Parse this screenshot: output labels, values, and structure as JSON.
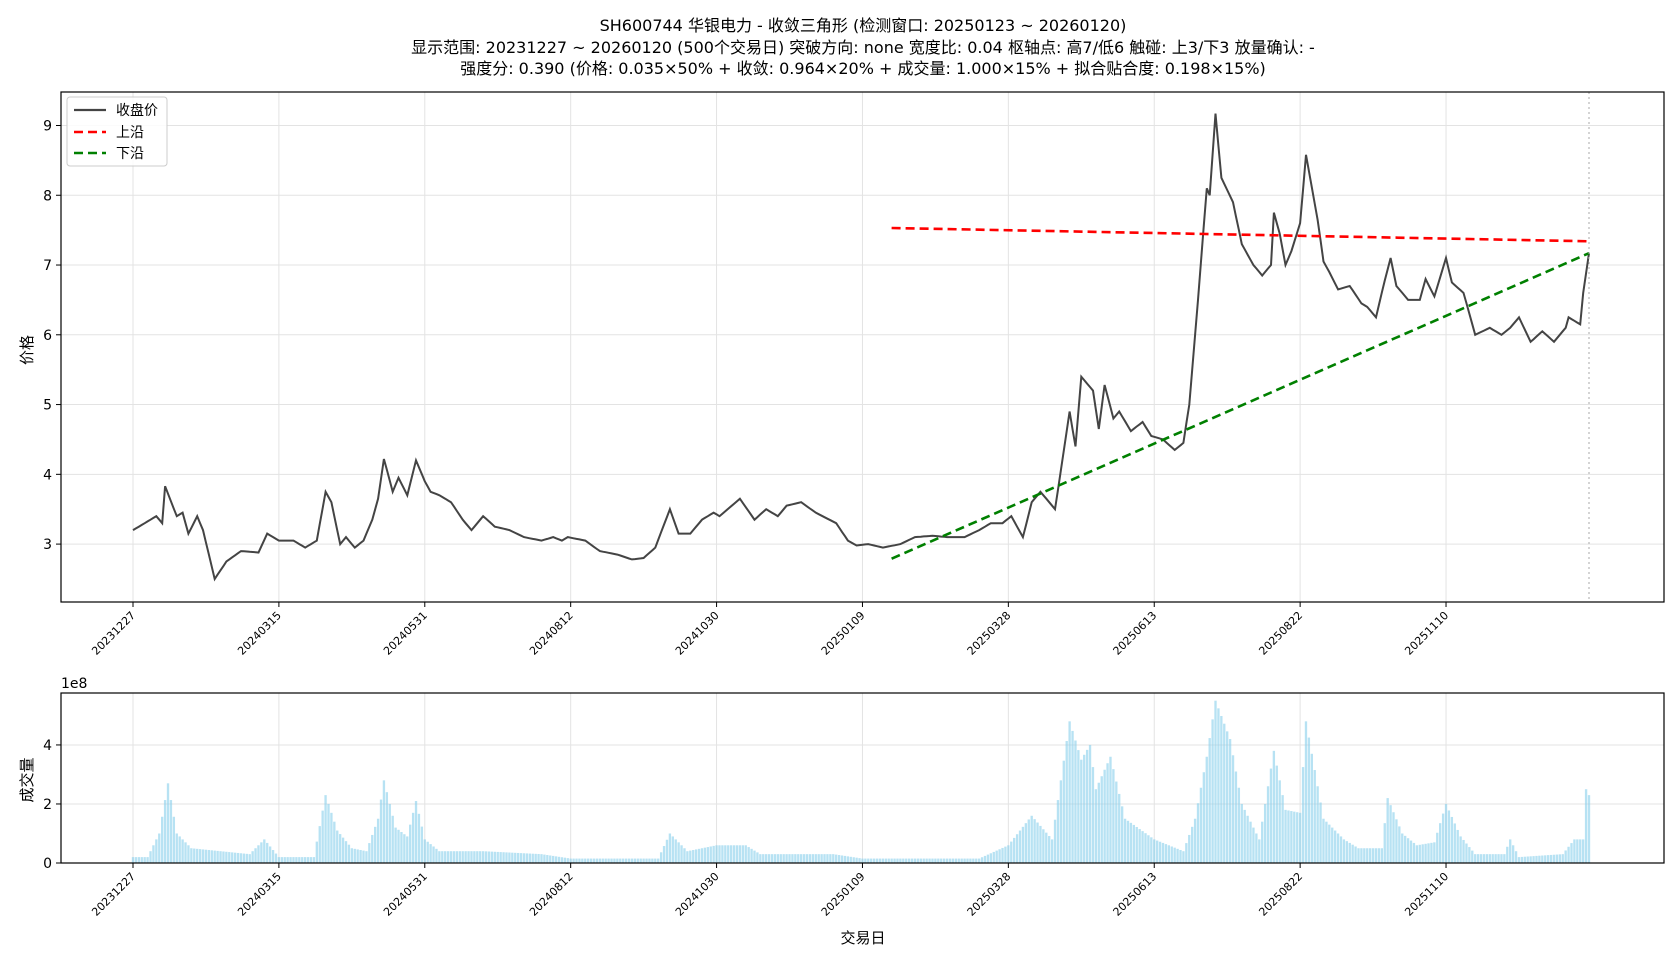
{
  "title": {
    "line1": "SH600744 华银电力 - 收敛三角形 (检测窗口: 20250123 ~ 20260120)",
    "line2": "显示范围: 20231227 ~ 20260120 (500个交易日)  突破方向: none  宽度比: 0.04  枢轴点: 高7/低6  触碰: 上3/下3  放量确认: -",
    "line3": "强度分: 0.390  (价格: 0.035×50% + 收敛: 0.964×20% + 成交量: 1.000×15% + 拟合贴合度: 0.198×15%)"
  },
  "chart_data": [
    {
      "type": "line",
      "ylabel": "价格",
      "ylim": [
        2.17,
        9.48
      ],
      "yticks": [
        3,
        4,
        5,
        6,
        7,
        8,
        9
      ],
      "grid": true,
      "legend_placement": "top-left",
      "x_trading_days": 500,
      "xticks": [
        {
          "day": 0,
          "label": "20231227"
        },
        {
          "day": 50,
          "label": "20240315"
        },
        {
          "day": 100,
          "label": "20240531"
        },
        {
          "day": 150,
          "label": "20240812"
        },
        {
          "day": 200,
          "label": "20241030"
        },
        {
          "day": 250,
          "label": "20250109"
        },
        {
          "day": 300,
          "label": "20250328"
        },
        {
          "day": 350,
          "label": "20250613"
        },
        {
          "day": 400,
          "label": "20250822"
        },
        {
          "day": 450,
          "label": "20251110"
        }
      ],
      "series": [
        {
          "name": "收盘价",
          "color": "#444444",
          "style": "solid",
          "points": [
            [
              0,
              3.2
            ],
            [
              4,
              3.3
            ],
            [
              8,
              3.4
            ],
            [
              10,
              3.3
            ],
            [
              11,
              3.83
            ],
            [
              15,
              3.4
            ],
            [
              17,
              3.45
            ],
            [
              19,
              3.15
            ],
            [
              22,
              3.4
            ],
            [
              24,
              3.2
            ],
            [
              28,
              2.5
            ],
            [
              32,
              2.75
            ],
            [
              37,
              2.9
            ],
            [
              43,
              2.88
            ],
            [
              46,
              3.15
            ],
            [
              50,
              3.05
            ],
            [
              55,
              3.05
            ],
            [
              59,
              2.95
            ],
            [
              63,
              3.05
            ],
            [
              66,
              3.75
            ],
            [
              68,
              3.6
            ],
            [
              71,
              3.0
            ],
            [
              73,
              3.1
            ],
            [
              76,
              2.95
            ],
            [
              79,
              3.05
            ],
            [
              82,
              3.35
            ],
            [
              84,
              3.65
            ],
            [
              86,
              4.22
            ],
            [
              89,
              3.75
            ],
            [
              91,
              3.95
            ],
            [
              94,
              3.7
            ],
            [
              97,
              4.2
            ],
            [
              100,
              3.9
            ],
            [
              102,
              3.75
            ],
            [
              105,
              3.7
            ],
            [
              109,
              3.6
            ],
            [
              113,
              3.35
            ],
            [
              116,
              3.2
            ],
            [
              120,
              3.4
            ],
            [
              124,
              3.25
            ],
            [
              129,
              3.2
            ],
            [
              134,
              3.1
            ],
            [
              140,
              3.05
            ],
            [
              144,
              3.1
            ],
            [
              147,
              3.05
            ],
            [
              149,
              3.1
            ],
            [
              155,
              3.05
            ],
            [
              160,
              2.9
            ],
            [
              166,
              2.85
            ],
            [
              171,
              2.78
            ],
            [
              175,
              2.8
            ],
            [
              179,
              2.95
            ],
            [
              184,
              3.5
            ],
            [
              187,
              3.15
            ],
            [
              191,
              3.15
            ],
            [
              195,
              3.35
            ],
            [
              199,
              3.45
            ],
            [
              201,
              3.4
            ],
            [
              208,
              3.65
            ],
            [
              213,
              3.35
            ],
            [
              217,
              3.5
            ],
            [
              221,
              3.4
            ],
            [
              224,
              3.55
            ],
            [
              229,
              3.6
            ],
            [
              234,
              3.45
            ],
            [
              241,
              3.3
            ],
            [
              245,
              3.05
            ],
            [
              248,
              2.98
            ],
            [
              252,
              3.0
            ],
            [
              257,
              2.95
            ],
            [
              263,
              3.0
            ],
            [
              268,
              3.1
            ],
            [
              274,
              3.12
            ],
            [
              279,
              3.1
            ],
            [
              285,
              3.1
            ],
            [
              290,
              3.2
            ],
            [
              294,
              3.3
            ],
            [
              298,
              3.3
            ],
            [
              301,
              3.4
            ],
            [
              305,
              3.1
            ],
            [
              308,
              3.6
            ],
            [
              311,
              3.75
            ],
            [
              316,
              3.5
            ],
            [
              321,
              4.9
            ],
            [
              323,
              4.4
            ],
            [
              325,
              5.4
            ],
            [
              329,
              5.2
            ],
            [
              331,
              4.65
            ],
            [
              333,
              5.28
            ],
            [
              336,
              4.8
            ],
            [
              338,
              4.9
            ],
            [
              342,
              4.62
            ],
            [
              346,
              4.75
            ],
            [
              349,
              4.55
            ],
            [
              353,
              4.5
            ],
            [
              357,
              4.35
            ],
            [
              360,
              4.45
            ],
            [
              362,
              5.0
            ],
            [
              365,
              6.5
            ],
            [
              368,
              8.1
            ],
            [
              369,
              8.0
            ],
            [
              371,
              9.17
            ],
            [
              373,
              8.25
            ],
            [
              377,
              7.9
            ],
            [
              380,
              7.3
            ],
            [
              384,
              7.0
            ],
            [
              387,
              6.85
            ],
            [
              390,
              7.0
            ],
            [
              391,
              7.75
            ],
            [
              393,
              7.45
            ],
            [
              395,
              7.0
            ],
            [
              397,
              7.2
            ],
            [
              400,
              7.6
            ],
            [
              402,
              8.58
            ],
            [
              406,
              7.65
            ],
            [
              408,
              7.05
            ],
            [
              410,
              6.9
            ],
            [
              413,
              6.65
            ],
            [
              417,
              6.7
            ],
            [
              421,
              6.45
            ],
            [
              423,
              6.4
            ],
            [
              426,
              6.25
            ],
            [
              429,
              6.78
            ],
            [
              431,
              7.1
            ],
            [
              433,
              6.7
            ],
            [
              437,
              6.5
            ],
            [
              441,
              6.5
            ],
            [
              443,
              6.8
            ],
            [
              446,
              6.55
            ],
            [
              450,
              7.1
            ],
            [
              452,
              6.75
            ],
            [
              456,
              6.6
            ],
            [
              460,
              6.0
            ],
            [
              465,
              6.1
            ],
            [
              469,
              6.0
            ],
            [
              472,
              6.1
            ],
            [
              475,
              6.25
            ],
            [
              479,
              5.9
            ],
            [
              483,
              6.05
            ],
            [
              487,
              5.9
            ],
            [
              491,
              6.1
            ],
            [
              492,
              6.25
            ],
            [
              496,
              6.15
            ],
            [
              497,
              6.6
            ],
            [
              499,
              7.17
            ]
          ]
        },
        {
          "name": "上沿",
          "color": "#ff0000",
          "style": "dashed",
          "points": [
            [
              260,
              7.53
            ],
            [
              499,
              7.34
            ]
          ]
        },
        {
          "name": "下沿",
          "color": "#008000",
          "style": "dashed",
          "points": [
            [
              260,
              2.79
            ],
            [
              499,
              7.17
            ]
          ]
        }
      ],
      "vline_day": 499
    },
    {
      "type": "bar",
      "xlabel": "交易日",
      "ylabel": "成交量",
      "y_multiplier": "1e8",
      "ylim": [
        0,
        5.76
      ],
      "yticks": [
        0,
        2,
        4
      ],
      "grid": true,
      "color": "#87ceeb",
      "points": [
        [
          0,
          0.2
        ],
        [
          5,
          0.2
        ],
        [
          9,
          1.0
        ],
        [
          12,
          2.7
        ],
        [
          15,
          1.0
        ],
        [
          20,
          0.5
        ],
        [
          30,
          0.4
        ],
        [
          40,
          0.3
        ],
        [
          45,
          0.8
        ],
        [
          50,
          0.2
        ],
        [
          62,
          0.2
        ],
        [
          66,
          2.3
        ],
        [
          70,
          1.1
        ],
        [
          75,
          0.5
        ],
        [
          80,
          0.4
        ],
        [
          84,
          1.5
        ],
        [
          86,
          2.8
        ],
        [
          90,
          1.2
        ],
        [
          94,
          0.9
        ],
        [
          97,
          2.1
        ],
        [
          100,
          0.8
        ],
        [
          105,
          0.4
        ],
        [
          120,
          0.4
        ],
        [
          140,
          0.3
        ],
        [
          150,
          0.15
        ],
        [
          180,
          0.15
        ],
        [
          184,
          1.0
        ],
        [
          190,
          0.4
        ],
        [
          200,
          0.6
        ],
        [
          210,
          0.6
        ],
        [
          215,
          0.3
        ],
        [
          240,
          0.3
        ],
        [
          250,
          0.15
        ],
        [
          290,
          0.15
        ],
        [
          300,
          0.6
        ],
        [
          308,
          1.6
        ],
        [
          315,
          0.8
        ],
        [
          321,
          4.8
        ],
        [
          325,
          3.5
        ],
        [
          328,
          4.0
        ],
        [
          330,
          2.5
        ],
        [
          335,
          3.6
        ],
        [
          340,
          1.5
        ],
        [
          350,
          0.8
        ],
        [
          360,
          0.4
        ],
        [
          364,
          1.5
        ],
        [
          368,
          3.6
        ],
        [
          371,
          5.5
        ],
        [
          376,
          4.2
        ],
        [
          380,
          2.0
        ],
        [
          386,
          0.8
        ],
        [
          391,
          3.8
        ],
        [
          395,
          1.8
        ],
        [
          400,
          1.7
        ],
        [
          402,
          4.8
        ],
        [
          408,
          1.5
        ],
        [
          415,
          0.8
        ],
        [
          420,
          0.5
        ],
        [
          428,
          0.5
        ],
        [
          430,
          2.2
        ],
        [
          435,
          1.0
        ],
        [
          440,
          0.6
        ],
        [
          446,
          0.7
        ],
        [
          450,
          2.0
        ],
        [
          455,
          0.9
        ],
        [
          460,
          0.3
        ],
        [
          470,
          0.3
        ],
        [
          472,
          0.8
        ],
        [
          475,
          0.2
        ],
        [
          490,
          0.3
        ],
        [
          494,
          0.8
        ],
        [
          497,
          0.8
        ],
        [
          498,
          2.5
        ],
        [
          499,
          2.3
        ]
      ]
    }
  ]
}
